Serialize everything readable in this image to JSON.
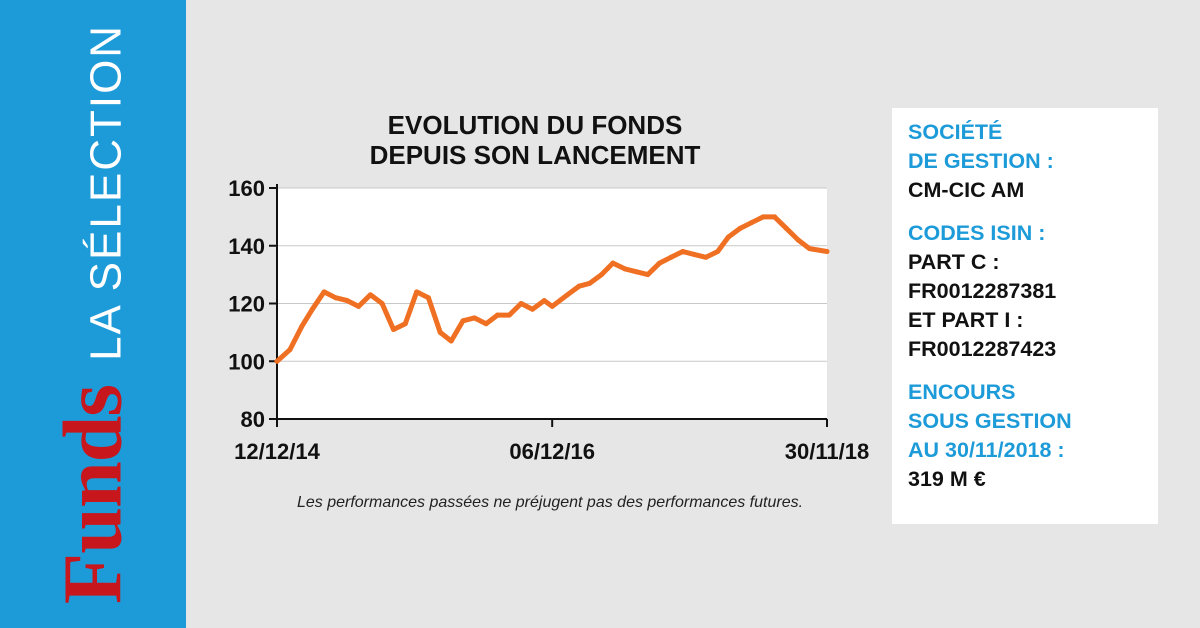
{
  "sidebar": {
    "brand": "Funds",
    "subtitle": "LA SÉLECTION"
  },
  "info": {
    "blocks": [
      {
        "heading": [
          "SOCIÉTÉ",
          "DE GESTION :"
        ],
        "values": [
          "CM-CIC AM"
        ]
      },
      {
        "heading": [
          "CODES ISIN :"
        ],
        "values": [
          "PART C :",
          "FR0012287381",
          "ET PART I :",
          "FR0012287423"
        ]
      },
      {
        "heading": [
          "ENCOURS",
          "SOUS GESTION",
          "AU 30/11/2018 :"
        ],
        "values": [
          "319 M €"
        ]
      }
    ]
  },
  "disclaimer": "Les performances passées ne préjugent pas des performances futures.",
  "colors": {
    "sidebar": "#1d9bd9",
    "brand": "#c8161d",
    "line": "#f07023",
    "accent": "#1d9bd9"
  },
  "chart_data": {
    "type": "line",
    "title_lines": [
      "EVOLUTION DU FONDS",
      "DEPUIS SON LANCEMENT"
    ],
    "xlabel": "",
    "ylabel": "",
    "ylim": [
      80,
      160
    ],
    "yticks": [
      160,
      140,
      120,
      100,
      80
    ],
    "xticks": [
      "12/12/14",
      "06/12/16",
      "30/11/18"
    ],
    "grid": true,
    "x": [
      "2014-12-12",
      "2015-01-15",
      "2015-02-15",
      "2015-03-15",
      "2015-04-15",
      "2015-05-15",
      "2015-06-15",
      "2015-07-15",
      "2015-08-15",
      "2015-09-15",
      "2015-10-15",
      "2015-11-15",
      "2015-12-15",
      "2016-01-15",
      "2016-02-15",
      "2016-03-15",
      "2016-04-15",
      "2016-05-15",
      "2016-06-15",
      "2016-07-15",
      "2016-08-15",
      "2016-09-15",
      "2016-10-15",
      "2016-11-15",
      "2016-12-06",
      "2017-01-15",
      "2017-02-15",
      "2017-03-15",
      "2017-04-15",
      "2017-05-15",
      "2017-06-15",
      "2017-07-15",
      "2017-08-15",
      "2017-09-15",
      "2017-10-15",
      "2017-11-15",
      "2017-12-15",
      "2018-01-15",
      "2018-02-15",
      "2018-03-15",
      "2018-04-15",
      "2018-05-15",
      "2018-06-15",
      "2018-07-15",
      "2018-08-15",
      "2018-09-15",
      "2018-10-15",
      "2018-11-30"
    ],
    "values": [
      100,
      104,
      112,
      118,
      124,
      122,
      121,
      119,
      123,
      120,
      111,
      113,
      124,
      122,
      110,
      107,
      114,
      115,
      113,
      116,
      116,
      120,
      118,
      121,
      119,
      123,
      126,
      127,
      130,
      134,
      132,
      131,
      130,
      134,
      136,
      138,
      137,
      136,
      138,
      143,
      146,
      148,
      150,
      150,
      146,
      142,
      139,
      138
    ]
  }
}
